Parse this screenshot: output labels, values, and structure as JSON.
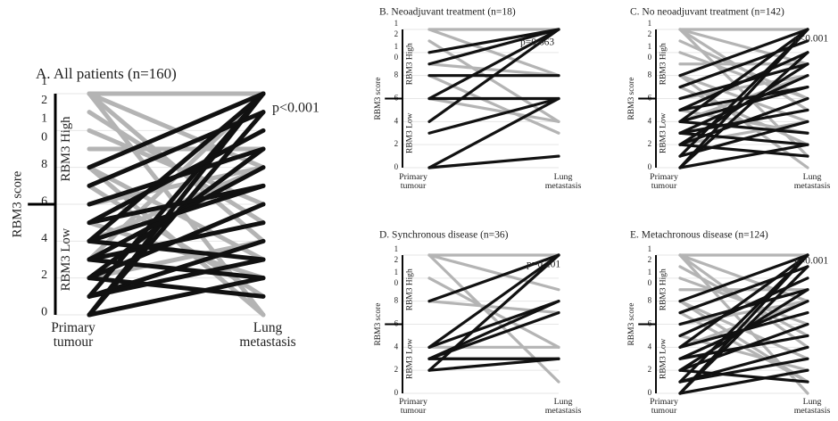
{
  "chart_data": [
    {
      "type": "slope",
      "title": "A. All patients (n=160)",
      "ylabel": "RBM3 score",
      "categories": [
        "Primary tumour",
        "Lung metastasis"
      ],
      "ylim": [
        0,
        12
      ],
      "yticks": [
        0,
        2,
        4,
        6,
        8,
        10,
        12
      ],
      "threshold": 6,
      "high_label": "RBM3 High",
      "low_label": "RBM3 Low",
      "annotation": "p<0.001",
      "series": [
        {
          "color": "#b4b4b4",
          "values": [
            12,
            12
          ]
        },
        {
          "color": "#b4b4b4",
          "values": [
            12,
            0
          ]
        },
        {
          "color": "#b4b4b4",
          "values": [
            12,
            4
          ]
        },
        {
          "color": "#b4b4b4",
          "values": [
            12,
            8
          ]
        },
        {
          "color": "#b4b4b4",
          "values": [
            10,
            6
          ]
        },
        {
          "color": "#b4b4b4",
          "values": [
            8,
            0
          ]
        },
        {
          "color": "#b4b4b4",
          "values": [
            8,
            3
          ]
        },
        {
          "color": "#b4b4b4",
          "values": [
            9,
            9
          ]
        },
        {
          "color": "#b4b4b4",
          "values": [
            7,
            1
          ]
        },
        {
          "color": "#b4b4b4",
          "values": [
            6,
            8
          ]
        },
        {
          "color": "#b4b4b4",
          "values": [
            4,
            8
          ]
        },
        {
          "color": "#b4b4b4",
          "values": [
            3,
            12
          ]
        },
        {
          "color": "#b4b4b4",
          "values": [
            5,
            2
          ]
        },
        {
          "color": "#b4b4b4",
          "values": [
            2,
            4
          ]
        },
        {
          "color": "#b4b4b4",
          "values": [
            11,
            5
          ]
        },
        {
          "color": "#111111",
          "values": [
            0,
            12
          ]
        },
        {
          "color": "#111111",
          "values": [
            0,
            11
          ]
        },
        {
          "color": "#111111",
          "values": [
            1,
            12
          ]
        },
        {
          "color": "#111111",
          "values": [
            2,
            9
          ]
        },
        {
          "color": "#111111",
          "values": [
            3,
            8
          ]
        },
        {
          "color": "#111111",
          "values": [
            4,
            12
          ]
        },
        {
          "color": "#111111",
          "values": [
            4,
            7
          ]
        },
        {
          "color": "#111111",
          "values": [
            5,
            10
          ]
        },
        {
          "color": "#111111",
          "values": [
            6,
            9
          ]
        },
        {
          "color": "#111111",
          "values": [
            2,
            6
          ]
        },
        {
          "color": "#111111",
          "values": [
            1,
            4
          ]
        },
        {
          "color": "#111111",
          "values": [
            3,
            5
          ]
        },
        {
          "color": "#111111",
          "values": [
            0,
            2
          ]
        },
        {
          "color": "#111111",
          "values": [
            8,
            12
          ]
        },
        {
          "color": "#111111",
          "values": [
            4,
            3
          ]
        },
        {
          "color": "#111111",
          "values": [
            2,
            1
          ]
        },
        {
          "color": "#111111",
          "values": [
            3,
            2
          ]
        },
        {
          "color": "#111111",
          "values": [
            1,
            3
          ]
        },
        {
          "color": "#111111",
          "values": [
            5,
            7
          ]
        },
        {
          "color": "#111111",
          "values": [
            7,
            11
          ]
        }
      ]
    },
    {
      "type": "slope",
      "title": "B. Neoadjuvant treatment (n=18)",
      "ylabel": "RBM3 score",
      "categories": [
        "Primary tumour",
        "Lung metastasis"
      ],
      "ylim": [
        0,
        12
      ],
      "yticks": [
        0,
        2,
        4,
        6,
        8,
        10,
        12
      ],
      "threshold": 6,
      "high_label": "RBM3 High",
      "low_label": "RBM3 Low",
      "annotation": "p=0.663",
      "series": [
        {
          "color": "#b4b4b4",
          "values": [
            12,
            12
          ]
        },
        {
          "color": "#b4b4b4",
          "values": [
            12,
            8
          ]
        },
        {
          "color": "#b4b4b4",
          "values": [
            11,
            4
          ]
        },
        {
          "color": "#b4b4b4",
          "values": [
            8,
            3
          ]
        },
        {
          "color": "#b4b4b4",
          "values": [
            6,
            4
          ]
        },
        {
          "color": "#b4b4b4",
          "values": [
            9,
            8
          ]
        },
        {
          "color": "#111111",
          "values": [
            9,
            12
          ]
        },
        {
          "color": "#111111",
          "values": [
            10,
            12
          ]
        },
        {
          "color": "#111111",
          "values": [
            8,
            8
          ]
        },
        {
          "color": "#111111",
          "values": [
            6,
            6
          ]
        },
        {
          "color": "#111111",
          "values": [
            4,
            12
          ]
        },
        {
          "color": "#111111",
          "values": [
            3,
            6
          ]
        },
        {
          "color": "#111111",
          "values": [
            0,
            6
          ]
        },
        {
          "color": "#111111",
          "values": [
            0,
            1
          ]
        },
        {
          "color": "#111111",
          "values": [
            6,
            12
          ]
        }
      ]
    },
    {
      "type": "slope",
      "title": "C. No neoadjuvant treatment (n=142)",
      "ylabel": "RBM3 score",
      "categories": [
        "Primary tumour",
        "Lung metastasis"
      ],
      "ylim": [
        0,
        12
      ],
      "yticks": [
        0,
        2,
        4,
        6,
        8,
        10,
        12
      ],
      "threshold": 6,
      "high_label": "RBM3 High",
      "low_label": "RBM3 Low",
      "annotation": "p<0.001",
      "series": [
        {
          "color": "#b4b4b4",
          "values": [
            12,
            12
          ]
        },
        {
          "color": "#b4b4b4",
          "values": [
            12,
            1
          ]
        },
        {
          "color": "#b4b4b4",
          "values": [
            12,
            5
          ]
        },
        {
          "color": "#b4b4b4",
          "values": [
            12,
            9
          ]
        },
        {
          "color": "#b4b4b4",
          "values": [
            10,
            6
          ]
        },
        {
          "color": "#b4b4b4",
          "values": [
            8,
            0
          ]
        },
        {
          "color": "#b4b4b4",
          "values": [
            8,
            4
          ]
        },
        {
          "color": "#b4b4b4",
          "values": [
            9,
            9
          ]
        },
        {
          "color": "#b4b4b4",
          "values": [
            7,
            2
          ]
        },
        {
          "color": "#b4b4b4",
          "values": [
            6,
            8
          ]
        },
        {
          "color": "#b4b4b4",
          "values": [
            4,
            8
          ]
        },
        {
          "color": "#b4b4b4",
          "values": [
            5,
            3
          ]
        },
        {
          "color": "#b4b4b4",
          "values": [
            2,
            4
          ]
        },
        {
          "color": "#b4b4b4",
          "values": [
            11,
            6
          ]
        },
        {
          "color": "#111111",
          "values": [
            0,
            12
          ]
        },
        {
          "color": "#111111",
          "values": [
            0,
            10
          ]
        },
        {
          "color": "#111111",
          "values": [
            1,
            12
          ]
        },
        {
          "color": "#111111",
          "values": [
            2,
            9
          ]
        },
        {
          "color": "#111111",
          "values": [
            3,
            8
          ]
        },
        {
          "color": "#111111",
          "values": [
            4,
            12
          ]
        },
        {
          "color": "#111111",
          "values": [
            4,
            7
          ]
        },
        {
          "color": "#111111",
          "values": [
            5,
            10
          ]
        },
        {
          "color": "#111111",
          "values": [
            6,
            9
          ]
        },
        {
          "color": "#111111",
          "values": [
            2,
            6
          ]
        },
        {
          "color": "#111111",
          "values": [
            1,
            4
          ]
        },
        {
          "color": "#111111",
          "values": [
            3,
            5
          ]
        },
        {
          "color": "#111111",
          "values": [
            0,
            2
          ]
        },
        {
          "color": "#111111",
          "values": [
            8,
            12
          ]
        },
        {
          "color": "#111111",
          "values": [
            4,
            3
          ]
        },
        {
          "color": "#111111",
          "values": [
            2,
            1
          ]
        },
        {
          "color": "#111111",
          "values": [
            3,
            2
          ]
        },
        {
          "color": "#111111",
          "values": [
            5,
            7
          ]
        },
        {
          "color": "#111111",
          "values": [
            7,
            11
          ]
        }
      ]
    },
    {
      "type": "slope",
      "title": "D. Synchronous disease (n=36)",
      "ylabel": "RBM3 score",
      "categories": [
        "Primary tumour",
        "Lung metastasis"
      ],
      "ylim": [
        0,
        12
      ],
      "yticks": [
        0,
        2,
        4,
        6,
        8,
        10,
        12
      ],
      "threshold": 6,
      "high_label": "RBM3 High",
      "low_label": "RBM3 Low",
      "annotation": "p=0.201",
      "series": [
        {
          "color": "#b4b4b4",
          "values": [
            12,
            12
          ]
        },
        {
          "color": "#b4b4b4",
          "values": [
            12,
            9
          ]
        },
        {
          "color": "#b4b4b4",
          "values": [
            12,
            1
          ]
        },
        {
          "color": "#b4b4b4",
          "values": [
            10,
            4
          ]
        },
        {
          "color": "#b4b4b4",
          "values": [
            8,
            7
          ]
        },
        {
          "color": "#b4b4b4",
          "values": [
            4,
            4
          ]
        },
        {
          "color": "#b4b4b4",
          "values": [
            3,
            3
          ]
        },
        {
          "color": "#111111",
          "values": [
            8,
            12
          ]
        },
        {
          "color": "#111111",
          "values": [
            4,
            12
          ]
        },
        {
          "color": "#111111",
          "values": [
            4,
            8
          ]
        },
        {
          "color": "#111111",
          "values": [
            3,
            8
          ]
        },
        {
          "color": "#111111",
          "values": [
            3,
            3
          ]
        },
        {
          "color": "#111111",
          "values": [
            2,
            3
          ]
        },
        {
          "color": "#111111",
          "values": [
            3,
            7
          ]
        },
        {
          "color": "#111111",
          "values": [
            2,
            12
          ]
        }
      ]
    },
    {
      "type": "slope",
      "title": "E. Metachronous disease (n=124)",
      "ylabel": "RBM3 score",
      "categories": [
        "Primary tumour",
        "Lung metastasis"
      ],
      "ylim": [
        0,
        12
      ],
      "yticks": [
        0,
        2,
        4,
        6,
        8,
        10,
        12
      ],
      "threshold": 6,
      "high_label": "RBM3 High",
      "low_label": "RBM3 Low",
      "annotation": "p<0.001",
      "series": [
        {
          "color": "#b4b4b4",
          "values": [
            12,
            12
          ]
        },
        {
          "color": "#b4b4b4",
          "values": [
            12,
            0
          ]
        },
        {
          "color": "#b4b4b4",
          "values": [
            12,
            4
          ]
        },
        {
          "color": "#b4b4b4",
          "values": [
            12,
            8
          ]
        },
        {
          "color": "#b4b4b4",
          "values": [
            10,
            6
          ]
        },
        {
          "color": "#b4b4b4",
          "values": [
            8,
            1
          ]
        },
        {
          "color": "#b4b4b4",
          "values": [
            8,
            3
          ]
        },
        {
          "color": "#b4b4b4",
          "values": [
            9,
            9
          ]
        },
        {
          "color": "#b4b4b4",
          "values": [
            7,
            1
          ]
        },
        {
          "color": "#b4b4b4",
          "values": [
            6,
            8
          ]
        },
        {
          "color": "#b4b4b4",
          "values": [
            4,
            8
          ]
        },
        {
          "color": "#b4b4b4",
          "values": [
            5,
            2
          ]
        },
        {
          "color": "#b4b4b4",
          "values": [
            11,
            5
          ]
        },
        {
          "color": "#111111",
          "values": [
            0,
            12
          ]
        },
        {
          "color": "#111111",
          "values": [
            0,
            11
          ]
        },
        {
          "color": "#111111",
          "values": [
            1,
            12
          ]
        },
        {
          "color": "#111111",
          "values": [
            2,
            9
          ]
        },
        {
          "color": "#111111",
          "values": [
            3,
            8
          ]
        },
        {
          "color": "#111111",
          "values": [
            4,
            12
          ]
        },
        {
          "color": "#111111",
          "values": [
            4,
            7
          ]
        },
        {
          "color": "#111111",
          "values": [
            5,
            10
          ]
        },
        {
          "color": "#111111",
          "values": [
            6,
            9
          ]
        },
        {
          "color": "#111111",
          "values": [
            2,
            6
          ]
        },
        {
          "color": "#111111",
          "values": [
            1,
            4
          ]
        },
        {
          "color": "#111111",
          "values": [
            3,
            5
          ]
        },
        {
          "color": "#111111",
          "values": [
            0,
            2
          ]
        },
        {
          "color": "#111111",
          "values": [
            8,
            12
          ]
        },
        {
          "color": "#111111",
          "values": [
            2,
            1
          ]
        },
        {
          "color": "#111111",
          "values": [
            1,
            3
          ]
        },
        {
          "color": "#111111",
          "values": [
            7,
            11
          ]
        }
      ]
    }
  ]
}
